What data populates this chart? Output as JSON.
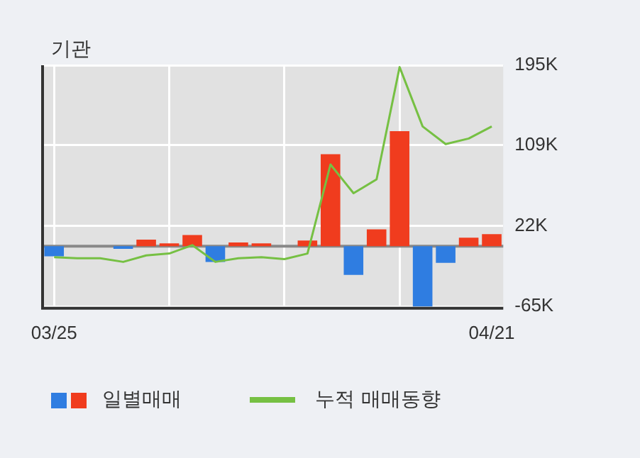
{
  "chart_data": {
    "type": "bar",
    "title": "기관",
    "categories": [
      "03/25",
      null,
      null,
      null,
      null,
      null,
      null,
      null,
      null,
      null,
      null,
      null,
      null,
      null,
      null,
      null,
      null,
      null,
      null,
      "04/21"
    ],
    "series": [
      {
        "name": "일별매매",
        "colors": [
          "#2f7de1",
          "#2f7de1",
          "#2f7de1",
          "#2f7de1",
          "#f03c1e",
          "#f03c1e",
          "#f03c1e",
          "#2f7de1",
          "#f03c1e",
          "#f03c1e",
          "#f03c1e",
          "#f03c1e",
          "#f03c1e",
          "#2f7de1",
          "#f03c1e",
          "#f03c1e",
          "#2f7de1",
          "#2f7de1",
          "#f03c1e",
          "#f03c1e"
        ],
        "values": [
          -11,
          0,
          0,
          -3,
          7,
          3,
          12,
          -17,
          4,
          3,
          0,
          6,
          99,
          -31,
          18,
          124,
          -65,
          -18,
          9,
          13
        ]
      },
      {
        "type": "line",
        "name": "누적 매매동향",
        "color": "#76c043",
        "values": [
          -12,
          -13,
          -13,
          -17,
          -10,
          -8,
          1,
          -17,
          -13,
          -12,
          -14,
          -8,
          88,
          57,
          72,
          193,
          129,
          110,
          116,
          129
        ]
      }
    ],
    "ylim": [
      -67,
      195
    ],
    "yticks": [
      {
        "value": -65,
        "label": "-65K"
      },
      {
        "value": 22,
        "label": "22K"
      },
      {
        "value": 109,
        "label": "109K"
      },
      {
        "value": 195,
        "label": "195K"
      }
    ],
    "grid": true,
    "legend": "bottom",
    "marker": "none"
  }
}
